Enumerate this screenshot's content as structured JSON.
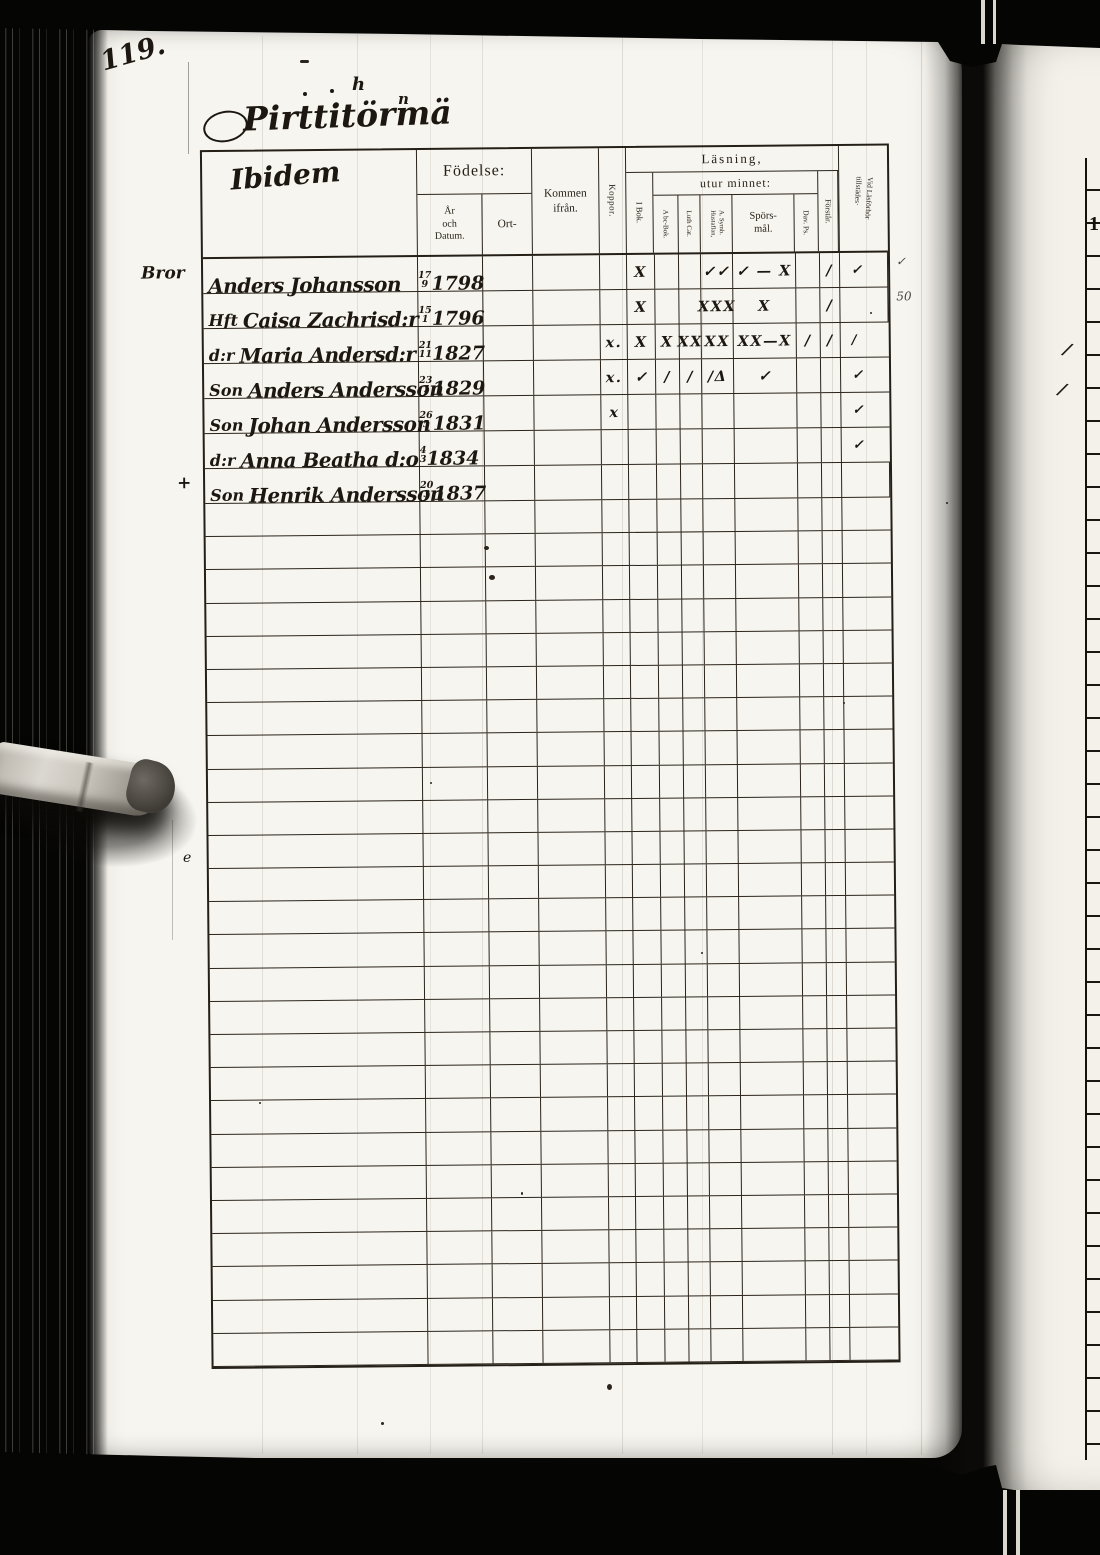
{
  "colors": {
    "paper": "#f7f5ef",
    "ink": "#1c1710",
    "background": "#050504"
  },
  "page": {
    "number": "119.",
    "title": "Pirttitörmä",
    "flourish_h": "h",
    "flourish_n": "n",
    "margin_mark": "e"
  },
  "header": {
    "name_col_hand": "Ibidem",
    "fodelse": "Födelse:",
    "ar_och_datum": "År\noch\nDatum.",
    "ort": "Ort-",
    "kommen": "Kommen\nifrån.",
    "koppor": "Koppor.",
    "lasning": "Läsning,",
    "utur_minnet": "utur minnet:",
    "i_bok": "I Bok.",
    "abc_bok": "A bc-Bok.",
    "luth_cat": "Luth Cat.",
    "symb_hustaflan": "A. Symb.\nHustaflan,",
    "sporsmal": "Spörs-\nmål.",
    "dav_ps": "Dav. Ps.",
    "forstar": "Förstår.",
    "vid_lasforhor": "Vid Läsförhör\ntillstädes·"
  },
  "table": {
    "rows": [
      {
        "margin": "Bror",
        "prefix": "",
        "name": "Anders Johansson",
        "dnum": "17",
        "dden": "9",
        "year": "1798",
        "marks": {
          "ibok": "X",
          "hustaflan": "✓✓",
          "sporsmal": "✓ — X",
          "forstar": "/",
          "vid": "✓"
        },
        "note": "✓"
      },
      {
        "prefix": "Hft",
        "name": "Caisa Zachrisd:r",
        "dnum": "15",
        "dden": "1",
        "year": "1796",
        "marks": {
          "ibok": "X",
          "hustaflan": "XXX",
          "sporsmal": "X",
          "forstar": "/"
        },
        "note": "50"
      },
      {
        "prefix": "d:r",
        "name": "Maria Andersd:r",
        "dnum": "21",
        "dden": "11",
        "year": "1827",
        "marks": {
          "koppor": "x.",
          "ibok": "X",
          "abcbok": "X",
          "luthcat": "XX",
          "hustaflan": "XX",
          "sporsmal": "XX—X",
          "davps": "/",
          "forstar": "/",
          "vid": "/"
        }
      },
      {
        "prefix": "Son",
        "name": "Anders Andersson",
        "dnum": "23",
        "dden": "7",
        "year": "1829",
        "marks": {
          "koppor": "x.",
          "ibok": "✓",
          "abcbok": "/",
          "luthcat": "/",
          "hustaflan": "/Δ",
          "sporsmal": "✓",
          "vid": "✓"
        }
      },
      {
        "prefix": "Son",
        "name": "Johan Andersson",
        "dnum": "26",
        "dden": "5",
        "year": "1831",
        "marks": {
          "koppor": "x",
          "vid": "✓"
        }
      },
      {
        "prefix": "d:r",
        "name": "Anna Beatha d:o",
        "dnum": "4",
        "dden": "3",
        "year": "1834",
        "marks": {
          "vid": "✓"
        }
      },
      {
        "margin": "+",
        "prefix": "Son",
        "name": "Henrik Andersson",
        "dnum": "20",
        "dden": "3",
        "year": "1837",
        "marks": {}
      }
    ],
    "empty_row_count": 26
  },
  "right_page": {
    "numeral": "1",
    "mark_a": "/",
    "mark_b": "/"
  }
}
